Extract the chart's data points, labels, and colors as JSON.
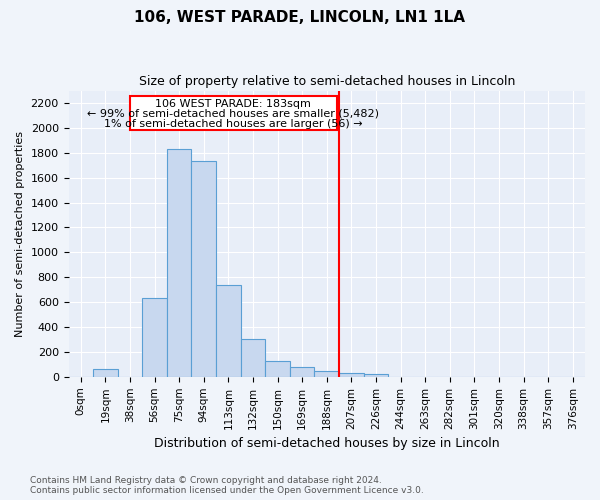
{
  "title": "106, WEST PARADE, LINCOLN, LN1 1LA",
  "subtitle": "Size of property relative to semi-detached houses in Lincoln",
  "xlabel": "Distribution of semi-detached houses by size in Lincoln",
  "ylabel": "Number of semi-detached properties",
  "footnote1": "Contains HM Land Registry data © Crown copyright and database right 2024.",
  "footnote2": "Contains public sector information licensed under the Open Government Licence v3.0.",
  "bar_labels": [
    "0sqm",
    "19sqm",
    "38sqm",
    "56sqm",
    "75sqm",
    "94sqm",
    "113sqm",
    "132sqm",
    "150sqm",
    "169sqm",
    "188sqm",
    "207sqm",
    "226sqm",
    "244sqm",
    "263sqm",
    "282sqm",
    "301sqm",
    "320sqm",
    "338sqm",
    "357sqm",
    "376sqm"
  ],
  "bar_values": [
    0,
    60,
    0,
    630,
    1830,
    1730,
    740,
    305,
    130,
    75,
    50,
    30,
    20,
    0,
    0,
    0,
    0,
    0,
    0,
    0,
    0
  ],
  "bar_color": "#c8d8ef",
  "bar_edge_color": "#5a9fd4",
  "ylim": [
    0,
    2300
  ],
  "yticks": [
    0,
    200,
    400,
    600,
    800,
    1000,
    1200,
    1400,
    1600,
    1800,
    2000,
    2200
  ],
  "property_line_x": 10.5,
  "annotation_text1": "106 WEST PARADE: 183sqm",
  "annotation_text2": "← 99% of semi-detached houses are smaller (5,482)",
  "annotation_text3": "1% of semi-detached houses are larger (56) →",
  "bg_color": "#e8eef8",
  "grid_color": "#ffffff",
  "fig_bg": "#f0f4fa"
}
